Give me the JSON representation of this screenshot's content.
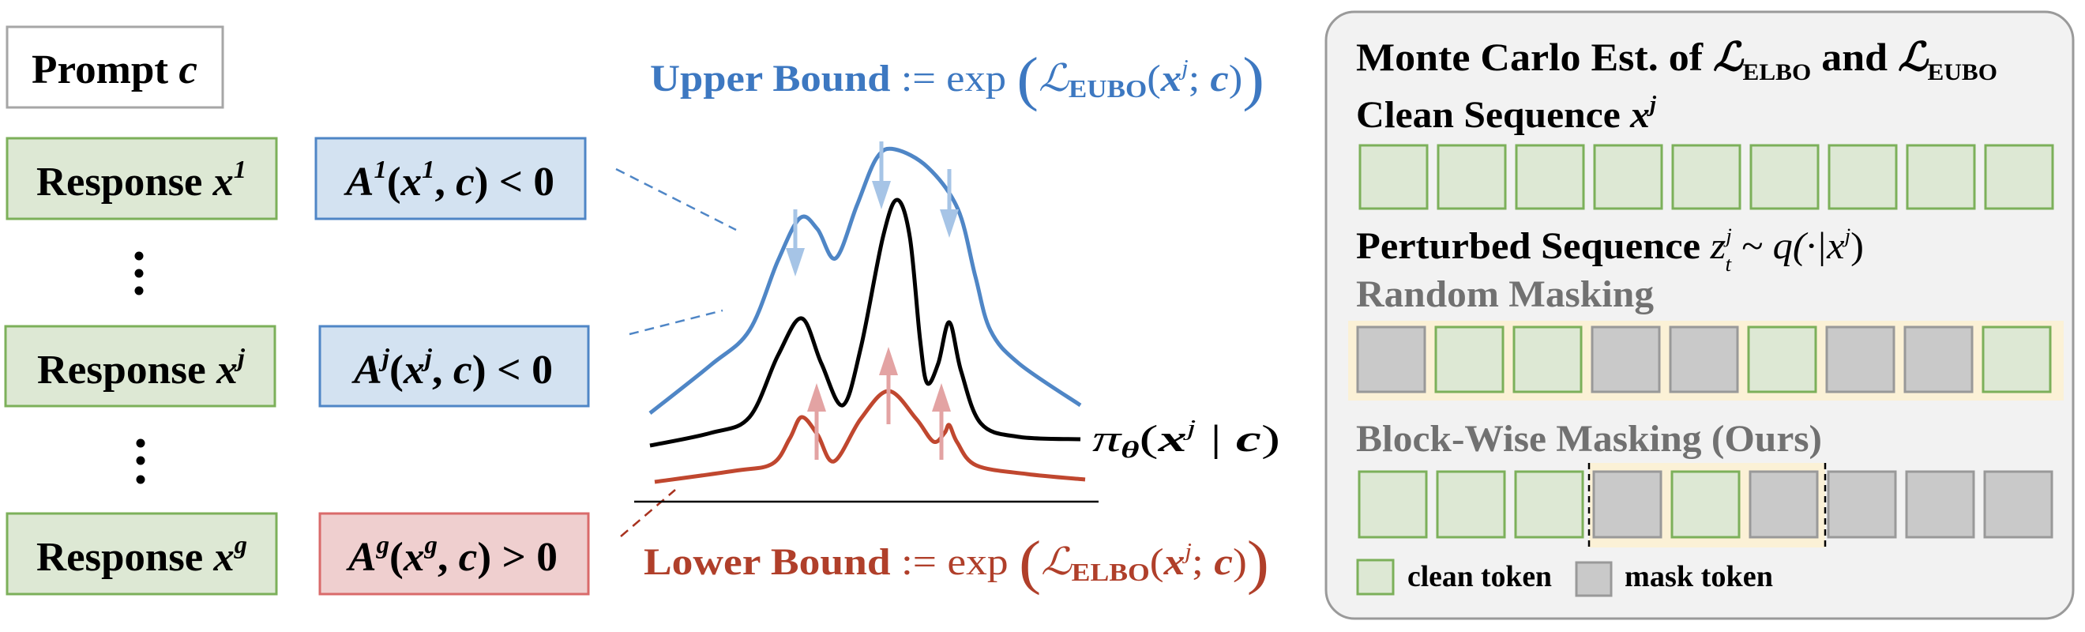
{
  "prompt": {
    "label": "Prompt",
    "var": "c"
  },
  "responses": [
    {
      "label": "Response",
      "var": "x",
      "sup": "1"
    },
    {
      "label": "Response",
      "var": "x",
      "sup": "j"
    },
    {
      "label": "Response",
      "var": "x",
      "sup": "g"
    }
  ],
  "advantages": [
    {
      "symbol": "A",
      "sup": "1",
      "open": "(",
      "var": "x",
      "sep": ", ",
      "cond": "c",
      "close": ")",
      "relation": " < 0",
      "sign": "negative"
    },
    {
      "symbol": "A",
      "sup": "j",
      "open": "(",
      "var": "x",
      "sep": ", ",
      "cond": "c",
      "close": ")",
      "relation": " < 0",
      "sign": "negative"
    },
    {
      "symbol": "A",
      "sup": "g",
      "open": "(",
      "var": "x",
      "sep": ", ",
      "cond": "c",
      "close": ")",
      "relation": " > 0",
      "sign": "positive"
    }
  ],
  "upper_bound": {
    "label": "Upper Bound",
    "def": " := exp ",
    "open": "(",
    "L": "ℒ",
    "sub": "EUBO",
    "arg_open": "(",
    "var": "x",
    "sup": "j",
    "sep": "; ",
    "cond": "c",
    "arg_close": ")",
    "close": ")"
  },
  "lower_bound": {
    "label": "Lower Bound",
    "def": " := exp ",
    "open": "(",
    "L": "ℒ",
    "sub": "ELBO",
    "arg_open": "(",
    "var": "x",
    "sup": "j",
    "sep": "; ",
    "cond": "c",
    "arg_close": ")",
    "close": ")"
  },
  "policy": {
    "pi": "π",
    "theta": "θ",
    "open": "(",
    "var": "x",
    "sup": "j",
    "bar": " | ",
    "cond": "c",
    "close": ")"
  },
  "panel": {
    "title": {
      "text": "Monte Carlo Est. of ",
      "L1": "ℒ",
      "sub1": "ELBO",
      "and": " and ",
      "L2": "ℒ",
      "sub2": "EUBO"
    },
    "clean": {
      "text": "Clean Sequence ",
      "var": "x",
      "sup": "j"
    },
    "perturbed": {
      "text": "Perturbed Sequence ",
      "var": "z",
      "sub": "t",
      "sup": "j",
      "dist": " ~ q(·|",
      "var2": "x",
      "sup2": "j",
      "close": ")"
    },
    "random_label": "Random Masking",
    "block_label": "Block-Wise Masking (Ours)",
    "clean_row": [
      "clean",
      "clean",
      "clean",
      "clean",
      "clean",
      "clean",
      "clean",
      "clean",
      "clean"
    ],
    "random_row": [
      "mask",
      "clean",
      "clean",
      "mask",
      "mask",
      "clean",
      "mask",
      "mask",
      "clean"
    ],
    "block_row": [
      "clean",
      "clean",
      "clean",
      "mask",
      "clean",
      "mask",
      "mask",
      "mask",
      "mask"
    ],
    "legend": {
      "clean": "clean token",
      "mask": "mask token"
    }
  },
  "colors": {
    "green_fill": "#dde8d4",
    "green_border": "#7cb05a",
    "gray_fill": "#c9c9c9",
    "gray_border": "#999999",
    "blue_fill": "#d3e2f1",
    "blue_border": "#4f86c6",
    "red_fill": "#efcfcf",
    "red_border": "#d96a6a",
    "blue_text": "#3d78c1",
    "red_text": "#b03f2a",
    "highlight": "#fbf1d6",
    "panel_fill": "#f2f2f2",
    "panel_border": "#9a9a9a"
  }
}
